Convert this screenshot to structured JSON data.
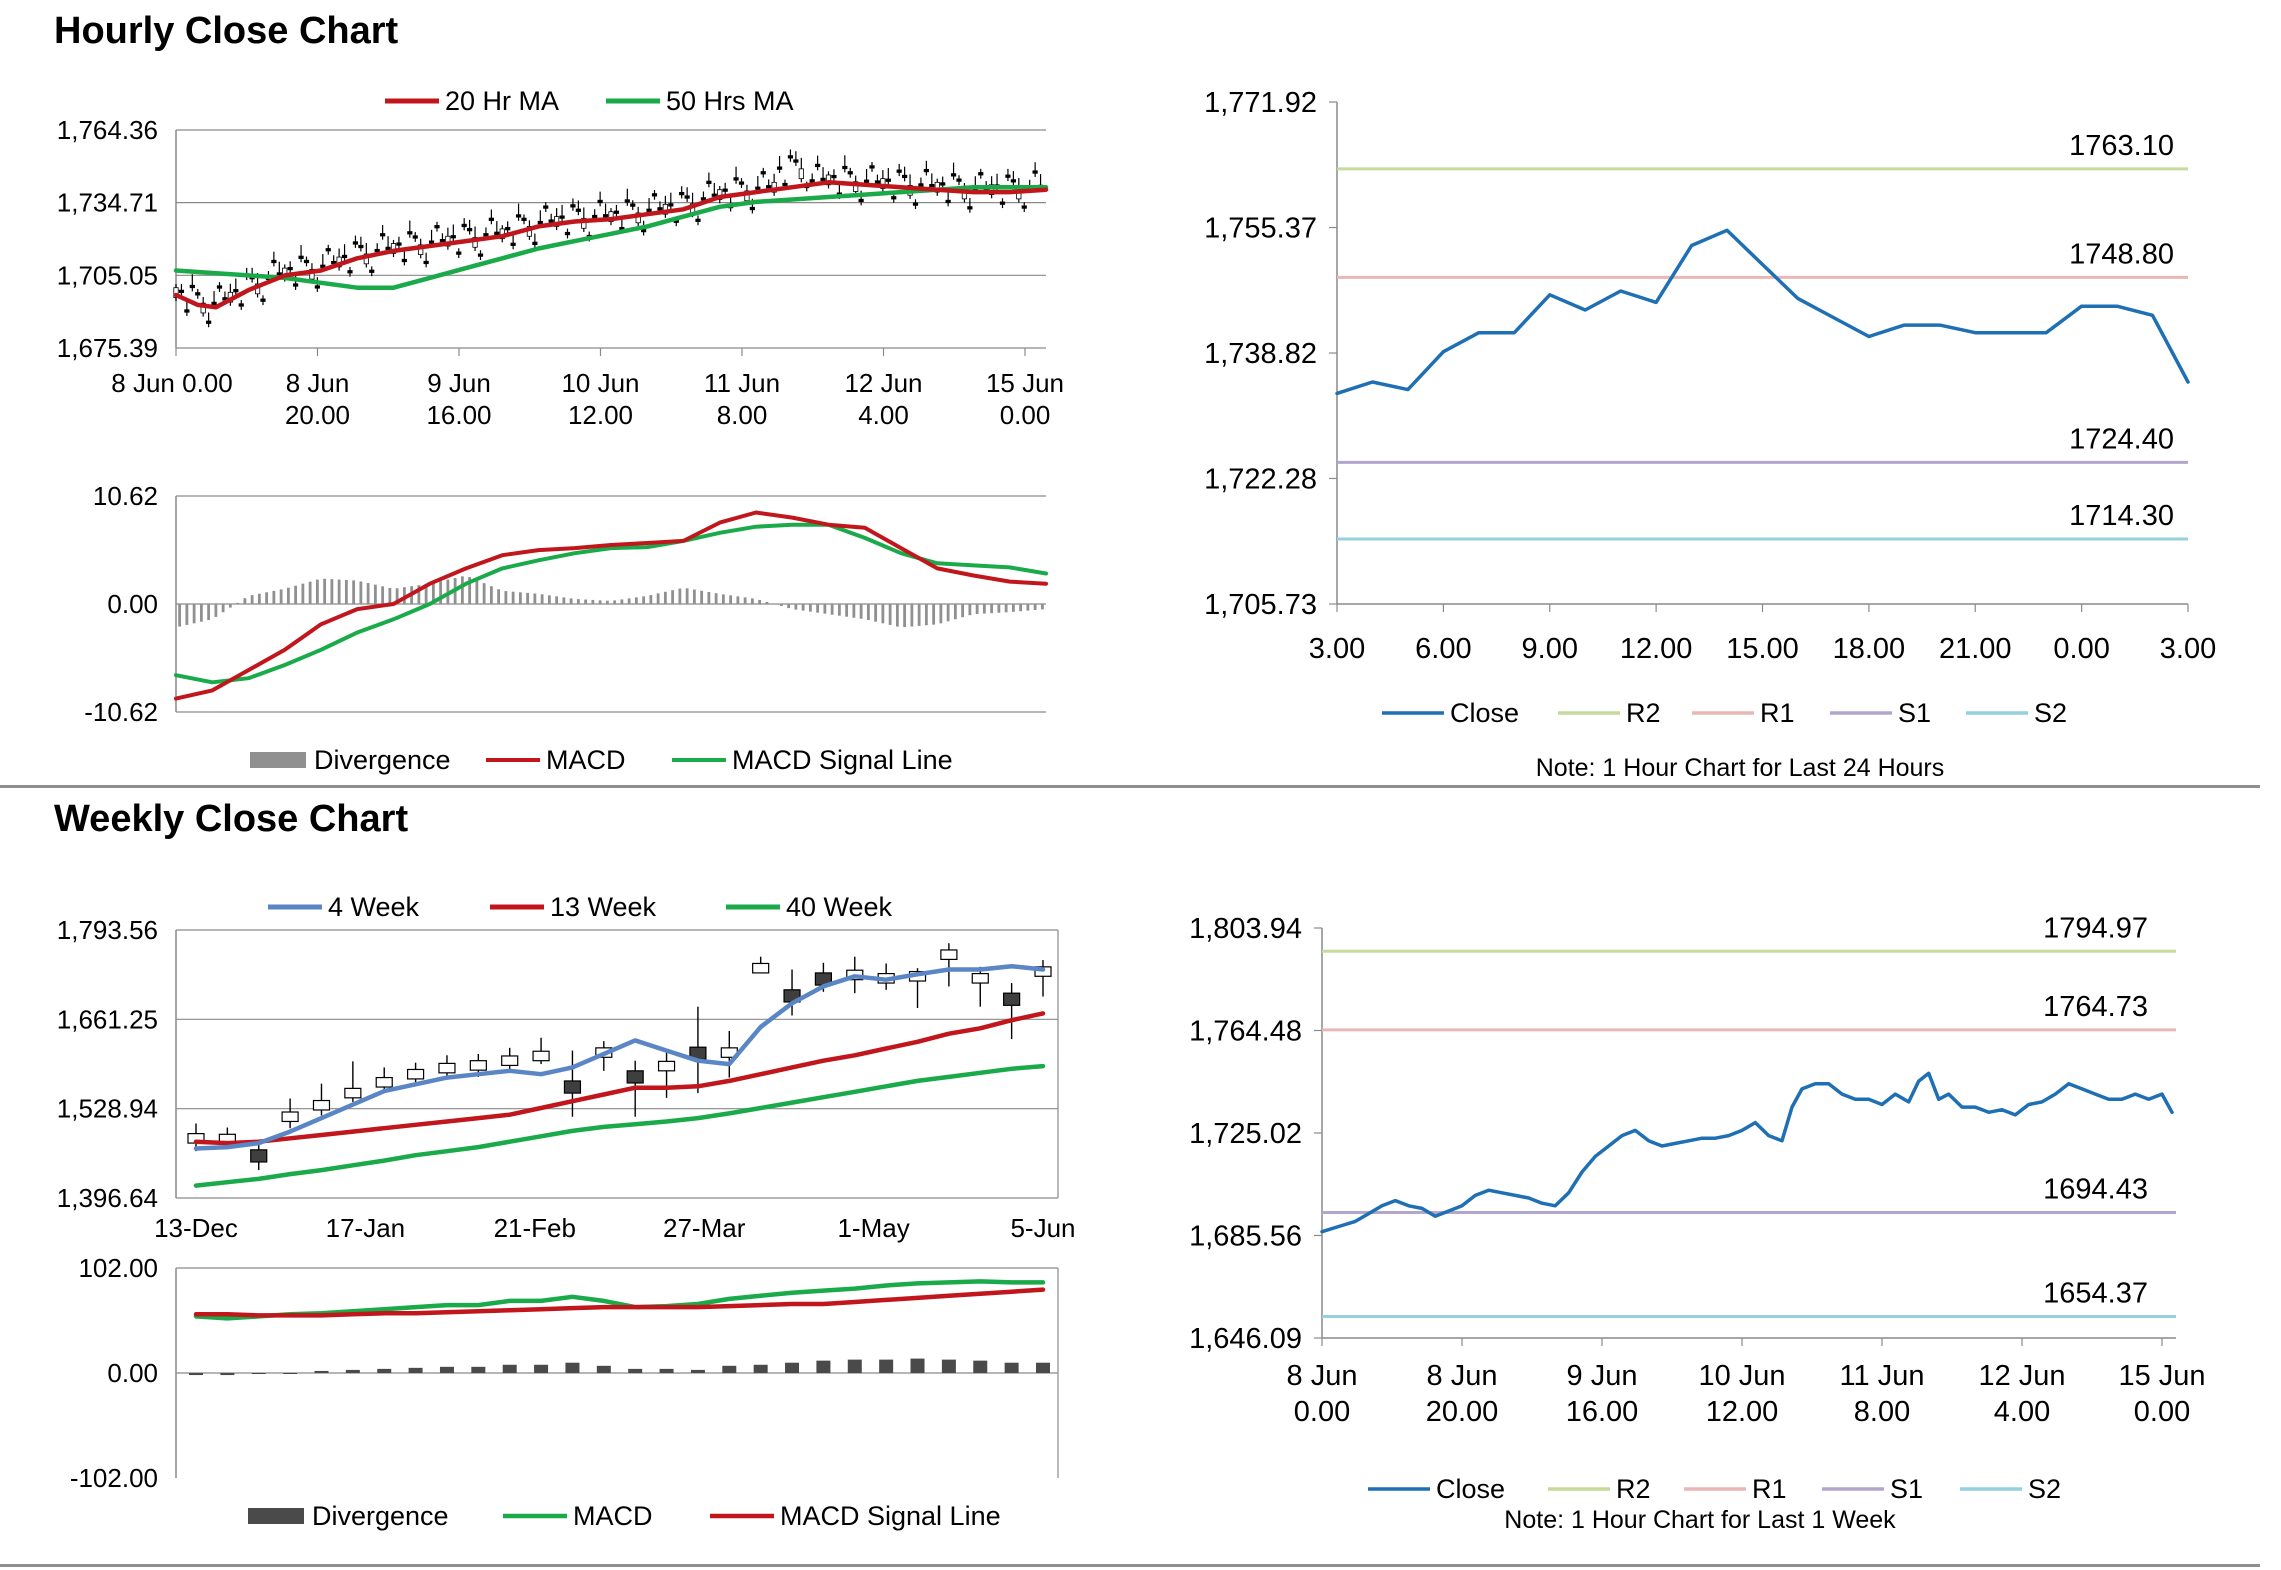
{
  "sections": {
    "hourly": {
      "title": "Hourly Close Chart"
    },
    "weekly": {
      "title": "Weekly Close Chart"
    }
  },
  "colors": {
    "ma_red": "#c0161c",
    "ma_green": "#1aaa4a",
    "blue4w": "#5a86c6",
    "close": "#1f6fb4",
    "r2": "#c6da9b",
    "r1": "#eab7b7",
    "s1": "#b3a6ce",
    "s2": "#94d0de",
    "grid": "#8a8a8a",
    "divergence": "#909090",
    "divergence_dark": "#4a4a4a",
    "candle_dark": "#3f3f3f"
  },
  "chart_data": [
    {
      "id": "hourly_price",
      "type": "candlestick",
      "title": "Hourly Close Chart",
      "legend": [
        "20 Hr MA",
        "50 Hrs MA"
      ],
      "yticks": [
        "1,764.36",
        "1,734.71",
        "1,705.05",
        "1,675.39"
      ],
      "ylim": [
        1675.39,
        1764.36
      ],
      "xticks": [
        [
          "8 Jun 0.00",
          ""
        ],
        [
          "8 Jun",
          "20.00"
        ],
        [
          "9 Jun",
          "16.00"
        ],
        [
          "10 Jun",
          "12.00"
        ],
        [
          "11 Jun",
          "8.00"
        ],
        [
          "12 Jun",
          "4.00"
        ],
        [
          "15 Jun",
          "0.00"
        ]
      ],
      "ma20": [
        [
          0,
          1697
        ],
        [
          12,
          1693
        ],
        [
          22,
          1692
        ],
        [
          40,
          1699
        ],
        [
          60,
          1705
        ],
        [
          80,
          1707
        ],
        [
          100,
          1712
        ],
        [
          120,
          1715
        ],
        [
          140,
          1717
        ],
        [
          160,
          1719
        ],
        [
          180,
          1721
        ],
        [
          200,
          1725
        ],
        [
          220,
          1727
        ],
        [
          240,
          1728
        ],
        [
          260,
          1730
        ],
        [
          280,
          1732
        ],
        [
          300,
          1737
        ],
        [
          320,
          1739
        ],
        [
          340,
          1741
        ],
        [
          360,
          1743
        ],
        [
          380,
          1742
        ],
        [
          400,
          1741
        ],
        [
          420,
          1740
        ],
        [
          440,
          1739
        ],
        [
          460,
          1739
        ],
        [
          480,
          1740
        ]
      ],
      "ma50": [
        [
          0,
          1707
        ],
        [
          20,
          1706
        ],
        [
          40,
          1705
        ],
        [
          60,
          1704
        ],
        [
          80,
          1702
        ],
        [
          100,
          1700
        ],
        [
          120,
          1700
        ],
        [
          140,
          1704
        ],
        [
          160,
          1708
        ],
        [
          180,
          1712
        ],
        [
          200,
          1716
        ],
        [
          220,
          1719
        ],
        [
          240,
          1722
        ],
        [
          260,
          1725
        ],
        [
          280,
          1729
        ],
        [
          300,
          1733
        ],
        [
          320,
          1735
        ],
        [
          340,
          1736
        ],
        [
          360,
          1737
        ],
        [
          380,
          1738
        ],
        [
          400,
          1739
        ],
        [
          420,
          1740
        ],
        [
          440,
          1741
        ],
        [
          460,
          1741
        ],
        [
          480,
          1741
        ]
      ]
    },
    {
      "id": "hourly_macd",
      "type": "line",
      "legend": [
        "Divergence",
        "MACD",
        "MACD Signal Line"
      ],
      "yticks": [
        "10.62",
        "0.00",
        "-10.62"
      ],
      "ylim": [
        -10.62,
        10.62
      ],
      "macd": [
        [
          0,
          -9.3
        ],
        [
          20,
          -8.5
        ],
        [
          40,
          -6.5
        ],
        [
          60,
          -4.5
        ],
        [
          80,
          -2
        ],
        [
          100,
          -0.5
        ],
        [
          120,
          0
        ],
        [
          140,
          2
        ],
        [
          160,
          3.5
        ],
        [
          180,
          4.8
        ],
        [
          200,
          5.3
        ],
        [
          220,
          5.5
        ],
        [
          240,
          5.8
        ],
        [
          260,
          6
        ],
        [
          280,
          6.2
        ],
        [
          300,
          8
        ],
        [
          320,
          9
        ],
        [
          340,
          8.5
        ],
        [
          360,
          7.8
        ],
        [
          380,
          7.5
        ],
        [
          400,
          5.5
        ],
        [
          420,
          3.5
        ],
        [
          440,
          2.8
        ],
        [
          460,
          2.2
        ],
        [
          480,
          2
        ]
      ],
      "signal": [
        [
          0,
          -7
        ],
        [
          20,
          -7.7
        ],
        [
          40,
          -7.3
        ],
        [
          60,
          -6
        ],
        [
          80,
          -4.5
        ],
        [
          100,
          -2.8
        ],
        [
          120,
          -1.5
        ],
        [
          140,
          0
        ],
        [
          160,
          2
        ],
        [
          180,
          3.5
        ],
        [
          200,
          4.3
        ],
        [
          220,
          5
        ],
        [
          240,
          5.5
        ],
        [
          260,
          5.6
        ],
        [
          280,
          6.2
        ],
        [
          300,
          7
        ],
        [
          320,
          7.6
        ],
        [
          340,
          7.8
        ],
        [
          360,
          7.8
        ],
        [
          380,
          6.5
        ],
        [
          400,
          5
        ],
        [
          420,
          4
        ],
        [
          440,
          3.8
        ],
        [
          460,
          3.6
        ],
        [
          480,
          3
        ]
      ],
      "divergence": [
        [
          0,
          -2.3
        ],
        [
          20,
          -1.5
        ],
        [
          40,
          0.8
        ],
        [
          60,
          1.5
        ],
        [
          80,
          2.5
        ],
        [
          100,
          2.3
        ],
        [
          120,
          1.5
        ],
        [
          140,
          2
        ],
        [
          160,
          2.8
        ],
        [
          180,
          1.3
        ],
        [
          200,
          1
        ],
        [
          220,
          0.5
        ],
        [
          240,
          0.3
        ],
        [
          260,
          0.8
        ],
        [
          280,
          1.6
        ],
        [
          300,
          1
        ],
        [
          320,
          0.5
        ],
        [
          340,
          -0.5
        ],
        [
          360,
          -1
        ],
        [
          380,
          -1.5
        ],
        [
          400,
          -2.3
        ],
        [
          420,
          -2
        ],
        [
          440,
          -1
        ],
        [
          460,
          -0.8
        ],
        [
          480,
          -0.5
        ]
      ]
    },
    {
      "id": "hourly_close_24h",
      "type": "line",
      "note": "Note: 1 Hour Chart for Last 24 Hours",
      "yticks": [
        "1,771.92",
        "1,755.37",
        "1,738.82",
        "1,722.28",
        "1,705.73"
      ],
      "ylim": [
        1705.73,
        1771.92
      ],
      "xticks": [
        "3.00",
        "6.00",
        "9.00",
        "12.00",
        "15.00",
        "18.00",
        "21.00",
        "0.00",
        "3.00"
      ],
      "levels": [
        {
          "name": "R2",
          "value": 1763.1,
          "label": "1763.10"
        },
        {
          "name": "R1",
          "value": 1748.8,
          "label": "1748.80"
        },
        {
          "name": "S1",
          "value": 1724.4,
          "label": "1724.40"
        },
        {
          "name": "S2",
          "value": 1714.3,
          "label": "1714.30"
        }
      ],
      "legend": [
        "Close",
        "R2",
        "R1",
        "S1",
        "S2"
      ],
      "close": [
        1733.5,
        1735,
        1734,
        1739,
        1741.5,
        1741.5,
        1746.5,
        1744.5,
        1747,
        1745.5,
        1753,
        1755,
        1750.5,
        1746,
        1743.5,
        1741,
        1742.5,
        1742.5,
        1741.5,
        1741.5,
        1741.5,
        1745,
        1745,
        1743.8,
        1735
      ]
    },
    {
      "id": "weekly_price",
      "type": "candlestick",
      "title": "Weekly Close Chart",
      "legend": [
        "4 Week",
        "13 Week",
        "40 Week"
      ],
      "yticks": [
        "1,793.56",
        "1,661.25",
        "1,528.94",
        "1,396.64"
      ],
      "ylim": [
        1396.64,
        1793.56
      ],
      "xticks": [
        "13-Dec",
        "17-Jan",
        "21-Feb",
        "27-Mar",
        "1-May",
        "5-Jun"
      ],
      "week4": [
        1470,
        1472,
        1478,
        1495,
        1515,
        1535,
        1555,
        1565,
        1575,
        1580,
        1585,
        1580,
        1590,
        1610,
        1630,
        1615,
        1600,
        1595,
        1650,
        1685,
        1710,
        1725,
        1720,
        1728,
        1735,
        1735,
        1740,
        1735
      ],
      "week13": [
        1480,
        1478,
        1480,
        1485,
        1490,
        1495,
        1500,
        1505,
        1510,
        1515,
        1520,
        1530,
        1540,
        1550,
        1560,
        1560,
        1562,
        1570,
        1580,
        1590,
        1600,
        1608,
        1618,
        1628,
        1640,
        1648,
        1660,
        1670
      ],
      "week40": [
        1415,
        1420,
        1425,
        1432,
        1438,
        1445,
        1452,
        1460,
        1466,
        1472,
        1480,
        1488,
        1496,
        1502,
        1506,
        1510,
        1515,
        1522,
        1530,
        1538,
        1546,
        1554,
        1562,
        1570,
        1576,
        1582,
        1588,
        1592
      ]
    },
    {
      "id": "weekly_macd",
      "type": "line",
      "legend": [
        "Divergence",
        "MACD",
        "MACD Signal Line"
      ],
      "yticks": [
        "102.00",
        "0.00",
        "-102.00"
      ],
      "ylim": [
        -102,
        102
      ],
      "macd": [
        55,
        53,
        55,
        57,
        58,
        60,
        62,
        64,
        66,
        66,
        70,
        70,
        74,
        70,
        64,
        65,
        67,
        72,
        75,
        78,
        80,
        82,
        85,
        87,
        88,
        89,
        88,
        88
      ],
      "signal": [
        57,
        57,
        56,
        56,
        56,
        57,
        58,
        58,
        59,
        60,
        61,
        62,
        63,
        64,
        64,
        64,
        64,
        65,
        66,
        67,
        67,
        69,
        71,
        73,
        75,
        77,
        79,
        81
      ],
      "divergence": [
        -2,
        -2,
        -1,
        0,
        2,
        3,
        4,
        5,
        6,
        6,
        8,
        8,
        10,
        7,
        4,
        4,
        3,
        7,
        8,
        10,
        12,
        13,
        13,
        14,
        13,
        12,
        10,
        10
      ]
    },
    {
      "id": "weekly_close_1w",
      "type": "line",
      "note": "Note: 1 Hour Chart for Last 1 Week",
      "yticks": [
        "1,803.94",
        "1,764.48",
        "1,725.02",
        "1,685.56",
        "1,646.09"
      ],
      "ylim": [
        1646.09,
        1803.94
      ],
      "xticks": [
        [
          "8 Jun",
          "0.00"
        ],
        [
          "8 Jun",
          "20.00"
        ],
        [
          "9 Jun",
          "16.00"
        ],
        [
          "10 Jun",
          "12.00"
        ],
        [
          "11 Jun",
          "8.00"
        ],
        [
          "12 Jun",
          "4.00"
        ],
        [
          "15 Jun",
          "0.00"
        ]
      ],
      "levels": [
        {
          "name": "R2",
          "value": 1794.97,
          "label": "1794.97"
        },
        {
          "name": "R1",
          "value": 1764.73,
          "label": "1764.73"
        },
        {
          "name": "S1",
          "value": 1694.43,
          "label": "1694.43"
        },
        {
          "name": "S2",
          "value": 1654.37,
          "label": "1654.37"
        }
      ],
      "legend": [
        "Close",
        "R2",
        "R1",
        "S1",
        "S2"
      ],
      "close": [
        [
          0,
          1687
        ],
        [
          5,
          1689
        ],
        [
          10,
          1691
        ],
        [
          14,
          1694
        ],
        [
          18,
          1697
        ],
        [
          22,
          1699
        ],
        [
          26,
          1697
        ],
        [
          30,
          1696
        ],
        [
          34,
          1693
        ],
        [
          38,
          1695
        ],
        [
          42,
          1697
        ],
        [
          46,
          1701
        ],
        [
          50,
          1703
        ],
        [
          54,
          1702
        ],
        [
          58,
          1701
        ],
        [
          62,
          1700
        ],
        [
          66,
          1698
        ],
        [
          70,
          1697
        ],
        [
          74,
          1702
        ],
        [
          78,
          1710
        ],
        [
          82,
          1716
        ],
        [
          86,
          1720
        ],
        [
          90,
          1724
        ],
        [
          94,
          1726
        ],
        [
          98,
          1722
        ],
        [
          102,
          1720
        ],
        [
          106,
          1721
        ],
        [
          110,
          1722
        ],
        [
          114,
          1723
        ],
        [
          118,
          1723
        ],
        [
          122,
          1724
        ],
        [
          126,
          1726
        ],
        [
          130,
          1729
        ],
        [
          134,
          1724
        ],
        [
          138,
          1722
        ],
        [
          141,
          1735
        ],
        [
          144,
          1742
        ],
        [
          148,
          1744
        ],
        [
          152,
          1744
        ],
        [
          156,
          1740
        ],
        [
          160,
          1738
        ],
        [
          164,
          1738
        ],
        [
          168,
          1736
        ],
        [
          172,
          1740
        ],
        [
          176,
          1737
        ],
        [
          179,
          1745
        ],
        [
          182,
          1748
        ],
        [
          185,
          1738
        ],
        [
          188,
          1740
        ],
        [
          192,
          1735
        ],
        [
          196,
          1735
        ],
        [
          200,
          1733
        ],
        [
          204,
          1734
        ],
        [
          208,
          1732
        ],
        [
          212,
          1736
        ],
        [
          216,
          1737
        ],
        [
          220,
          1740
        ],
        [
          224,
          1744
        ],
        [
          228,
          1742
        ],
        [
          232,
          1740
        ],
        [
          236,
          1738
        ],
        [
          240,
          1738
        ],
        [
          244,
          1740
        ],
        [
          248,
          1738
        ],
        [
          252,
          1740
        ],
        [
          255,
          1733
        ]
      ]
    }
  ]
}
